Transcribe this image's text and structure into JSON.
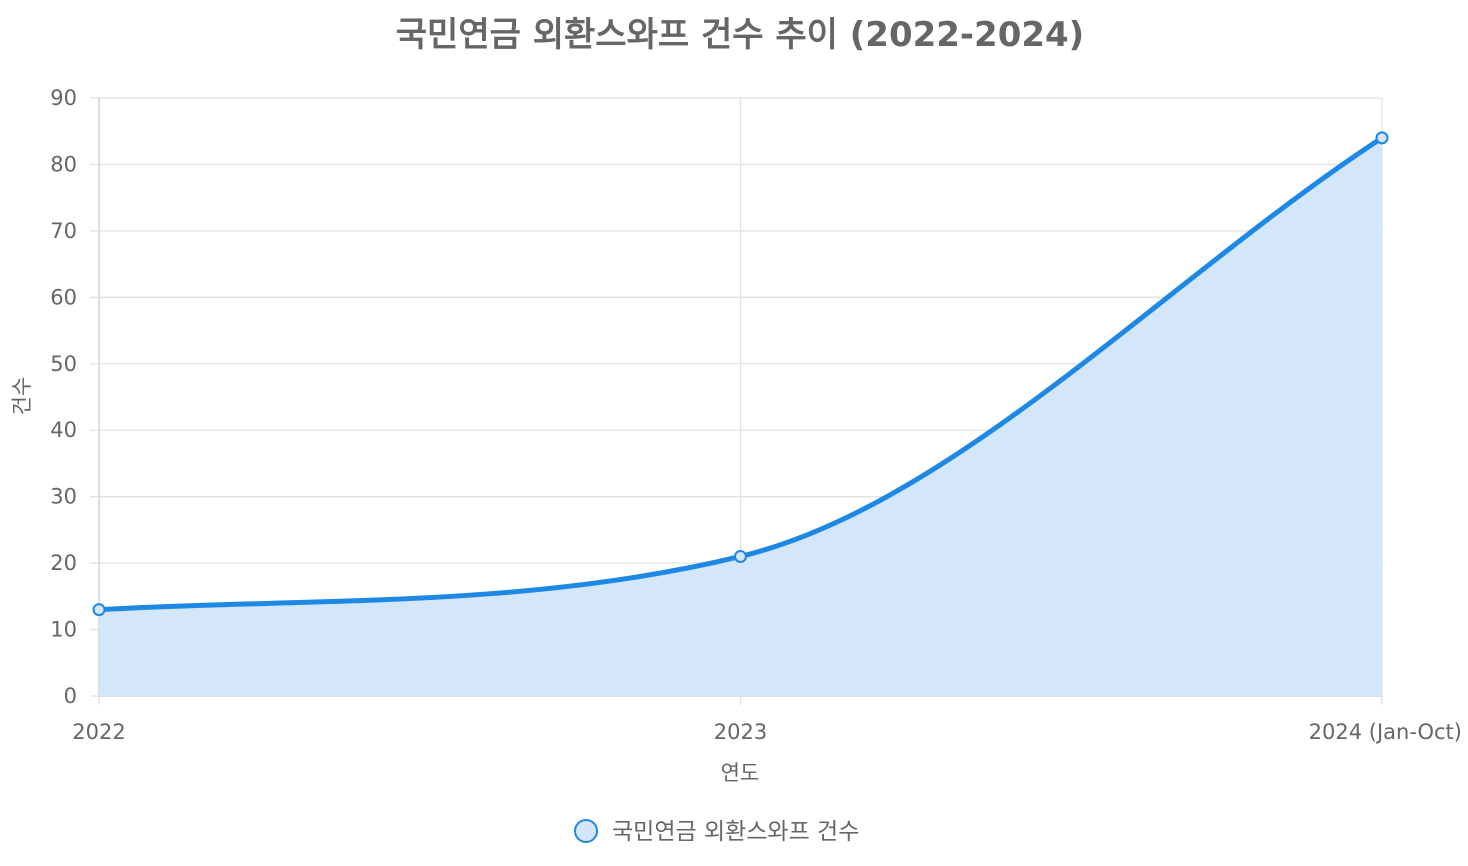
{
  "chart_data": {
    "type": "area",
    "title": "국민연금 외환스와프 건수 추이 (2022-2024)",
    "categories": [
      "2022",
      "2023",
      "2024 (Jan-Oct)"
    ],
    "series": [
      {
        "name": "국민연금 외환스와프 건수",
        "values": [
          13,
          21,
          84
        ],
        "color": "#1E88E5",
        "fill": "#D2E5F9"
      }
    ],
    "xlabel": "연도",
    "ylabel": "건수",
    "ylim": [
      0,
      90
    ],
    "yticks": [
      0,
      10,
      20,
      30,
      40,
      50,
      60,
      70,
      80,
      90
    ],
    "grid": true,
    "legend_position": "bottom"
  }
}
